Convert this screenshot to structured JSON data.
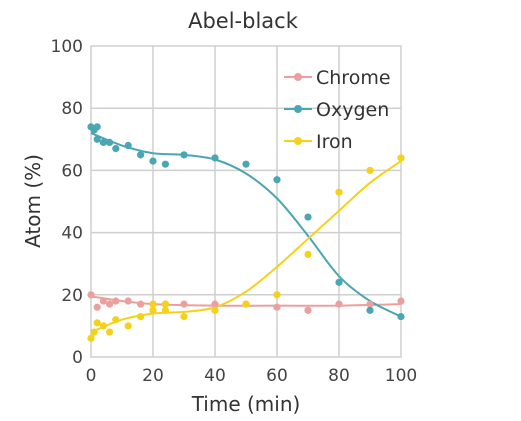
{
  "chart_data": {
    "type": "scatter",
    "title": "Abel-black",
    "xlabel": "Time (min)",
    "ylabel": "Atom (%)",
    "xlim": [
      0,
      100
    ],
    "ylim": [
      0,
      100
    ],
    "xticks": [
      0,
      20,
      40,
      60,
      80,
      100
    ],
    "yticks": [
      0,
      20,
      40,
      60,
      80,
      100
    ],
    "grid": true,
    "legend_position": "top-right",
    "series": [
      {
        "name": "Chrome",
        "color": "#eca09d",
        "points": [
          [
            0,
            20
          ],
          [
            2,
            16
          ],
          [
            4,
            18
          ],
          [
            6,
            17
          ],
          [
            8,
            18
          ],
          [
            12,
            18
          ],
          [
            16,
            17
          ],
          [
            20,
            17
          ],
          [
            24,
            17
          ],
          [
            30,
            17
          ],
          [
            40,
            17
          ],
          [
            50,
            17
          ],
          [
            60,
            16
          ],
          [
            70,
            15
          ],
          [
            80,
            17
          ],
          [
            90,
            17
          ],
          [
            100,
            18
          ]
        ],
        "fit": [
          [
            0,
            19.5
          ],
          [
            10,
            18
          ],
          [
            20,
            17
          ],
          [
            40,
            16.5
          ],
          [
            60,
            16.5
          ],
          [
            80,
            16.5
          ],
          [
            100,
            17
          ]
        ]
      },
      {
        "name": "Oxygen",
        "color": "#4aa6b3",
        "points": [
          [
            0,
            74
          ],
          [
            1,
            73
          ],
          [
            2,
            74
          ],
          [
            2,
            70
          ],
          [
            4,
            69
          ],
          [
            6,
            69
          ],
          [
            8,
            67
          ],
          [
            12,
            68
          ],
          [
            16,
            65
          ],
          [
            20,
            63
          ],
          [
            24,
            62
          ],
          [
            30,
            65
          ],
          [
            40,
            64
          ],
          [
            50,
            62
          ],
          [
            60,
            57
          ],
          [
            70,
            45
          ],
          [
            80,
            24
          ],
          [
            90,
            15
          ],
          [
            100,
            13
          ]
        ],
        "fit": [
          [
            0,
            72
          ],
          [
            10,
            68
          ],
          [
            20,
            65.5
          ],
          [
            30,
            65
          ],
          [
            40,
            63.5
          ],
          [
            50,
            59
          ],
          [
            60,
            51
          ],
          [
            70,
            39
          ],
          [
            80,
            26
          ],
          [
            90,
            18
          ],
          [
            100,
            13
          ]
        ]
      },
      {
        "name": "Iron",
        "color": "#f4d21a",
        "points": [
          [
            0,
            6
          ],
          [
            1,
            8
          ],
          [
            2,
            11
          ],
          [
            4,
            10
          ],
          [
            6,
            8
          ],
          [
            8,
            12
          ],
          [
            12,
            10
          ],
          [
            16,
            13
          ],
          [
            20,
            17
          ],
          [
            20,
            15
          ],
          [
            24,
            17
          ],
          [
            24,
            15
          ],
          [
            30,
            13
          ],
          [
            40,
            15
          ],
          [
            50,
            17
          ],
          [
            60,
            20
          ],
          [
            70,
            33
          ],
          [
            80,
            53
          ],
          [
            90,
            60
          ],
          [
            100,
            64
          ]
        ],
        "fit": [
          [
            0,
            8
          ],
          [
            10,
            12
          ],
          [
            20,
            14
          ],
          [
            30,
            14.5
          ],
          [
            40,
            16
          ],
          [
            50,
            21
          ],
          [
            60,
            29
          ],
          [
            70,
            38
          ],
          [
            80,
            47
          ],
          [
            90,
            56
          ],
          [
            100,
            63
          ]
        ]
      }
    ]
  }
}
